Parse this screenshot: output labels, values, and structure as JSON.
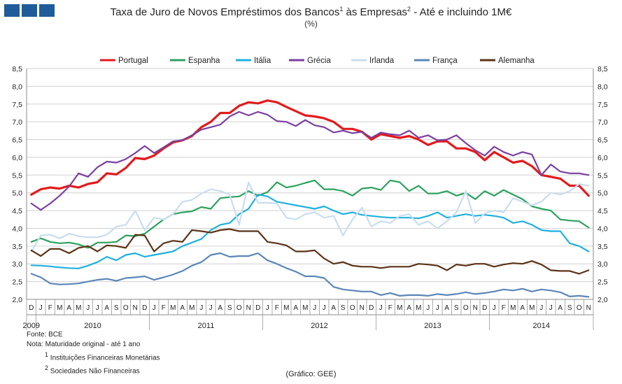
{
  "header": {
    "title_parts": [
      "Taxa de Juro de Novos Empréstimos dos Bancos",
      "1",
      " às Empresas",
      "2",
      " - Até e incluindo 1M€"
    ],
    "subtitle": "(%)"
  },
  "logo_color": "#1f5c99",
  "notes": {
    "source": "Fonte: BCE",
    "note": "Nota: Maturidade original - até 1 ano",
    "note1_mark": "1",
    "note1_text": " Instituições Financeiras Monetárias",
    "note2_mark": "2",
    "note2_text": " Sociedades Não Financeiras"
  },
  "credit": "(Gráfico: GEE)",
  "chart_data": {
    "type": "line",
    "ylim": [
      2.0,
      8.5
    ],
    "yticks": [
      "2,0",
      "2,5",
      "3,0",
      "3,5",
      "4,0",
      "4,5",
      "5,0",
      "5,5",
      "6,0",
      "6,5",
      "7,0",
      "7,5",
      "8,0",
      "8,5"
    ],
    "month_letters": [
      "D",
      "J",
      "F",
      "M",
      "A",
      "M",
      "J",
      "J",
      "A",
      "S",
      "O",
      "N",
      "D",
      "J",
      "F",
      "M",
      "A",
      "M",
      "J",
      "J",
      "A",
      "S",
      "O",
      "N",
      "D",
      "J",
      "F",
      "M",
      "A",
      "M",
      "J",
      "J",
      "A",
      "S",
      "O",
      "N",
      "D",
      "J",
      "F",
      "M",
      "A",
      "M",
      "J",
      "J",
      "A",
      "S",
      "O",
      "N",
      "D",
      "J",
      "F",
      "M",
      "A",
      "M",
      "J",
      "J",
      "A",
      "S",
      "O",
      "N"
    ],
    "years": [
      {
        "label": "2009",
        "start": 0,
        "end": 1
      },
      {
        "label": "2010",
        "start": 1,
        "end": 13
      },
      {
        "label": "2011",
        "start": 13,
        "end": 25
      },
      {
        "label": "2012",
        "start": 25,
        "end": 37
      },
      {
        "label": "2013",
        "start": 37,
        "end": 49
      },
      {
        "label": "2014",
        "start": 49,
        "end": 60
      }
    ],
    "grid": true,
    "legend_position": "top",
    "series": [
      {
        "name": "Portugal",
        "color": "#e31a1c",
        "width": 3.2,
        "values": [
          4.95,
          5.1,
          5.15,
          5.12,
          5.2,
          5.15,
          5.25,
          5.3,
          5.55,
          5.52,
          5.7,
          5.98,
          5.95,
          6.05,
          6.25,
          6.42,
          6.48,
          6.6,
          6.85,
          7.0,
          7.25,
          7.25,
          7.45,
          7.55,
          7.52,
          7.6,
          7.55,
          7.42,
          7.3,
          7.18,
          7.15,
          7.1,
          7.0,
          6.8,
          6.8,
          6.72,
          6.5,
          6.65,
          6.6,
          6.55,
          6.6,
          6.5,
          6.35,
          6.45,
          6.45,
          6.25,
          6.25,
          6.15,
          5.92,
          6.15,
          6.0,
          5.85,
          5.9,
          5.75,
          5.5,
          5.45,
          5.4,
          5.2,
          5.2,
          4.92
        ]
      },
      {
        "name": "Espanha",
        "color": "#2ca25f",
        "width": 2.2,
        "values": [
          3.62,
          3.72,
          3.62,
          3.58,
          3.6,
          3.55,
          3.45,
          3.6,
          3.6,
          3.62,
          3.8,
          3.78,
          3.85,
          4.05,
          4.25,
          4.4,
          4.45,
          4.48,
          4.6,
          4.55,
          4.85,
          4.88,
          4.9,
          5.05,
          4.92,
          5.02,
          5.3,
          5.15,
          5.2,
          5.28,
          5.35,
          5.1,
          5.1,
          5.05,
          4.92,
          5.12,
          5.15,
          5.08,
          5.35,
          5.3,
          5.05,
          5.2,
          4.98,
          4.98,
          5.05,
          4.92,
          5.0,
          4.82,
          5.05,
          4.92,
          5.08,
          4.95,
          4.82,
          4.62,
          4.55,
          4.5,
          4.25,
          4.22,
          4.2,
          4.02
        ]
      },
      {
        "name": "Itália",
        "color": "#1fb0e0",
        "width": 2.2,
        "values": [
          2.96,
          2.95,
          2.93,
          2.9,
          2.88,
          2.87,
          2.95,
          3.05,
          3.2,
          3.1,
          3.25,
          3.3,
          3.2,
          3.25,
          3.3,
          3.35,
          3.5,
          3.6,
          3.7,
          3.95,
          4.1,
          4.15,
          4.4,
          4.55,
          4.95,
          4.9,
          4.75,
          4.7,
          4.65,
          4.6,
          4.55,
          4.62,
          4.5,
          4.4,
          4.45,
          4.38,
          4.35,
          4.32,
          4.3,
          4.3,
          4.3,
          4.28,
          4.35,
          4.45,
          4.3,
          4.35,
          4.4,
          4.35,
          4.38,
          4.35,
          4.3,
          4.15,
          4.2,
          4.1,
          3.95,
          3.92,
          3.92,
          3.58,
          3.5,
          3.35
        ]
      },
      {
        "name": "Grécia",
        "color": "#7b3fa0",
        "width": 2.2,
        "values": [
          4.7,
          4.52,
          4.7,
          4.92,
          5.18,
          5.55,
          5.45,
          5.72,
          5.88,
          5.85,
          5.95,
          6.12,
          6.32,
          6.12,
          6.28,
          6.45,
          6.48,
          6.62,
          6.78,
          6.85,
          6.92,
          7.15,
          7.28,
          7.18,
          7.28,
          7.2,
          7.02,
          7.0,
          6.88,
          7.05,
          6.9,
          6.85,
          6.7,
          6.75,
          6.68,
          6.72,
          6.55,
          6.7,
          6.65,
          6.62,
          6.75,
          6.55,
          6.62,
          6.48,
          6.5,
          6.62,
          6.4,
          6.2,
          6.05,
          6.3,
          6.15,
          6.05,
          6.15,
          6.08,
          5.5,
          5.8,
          5.6,
          5.55,
          5.55,
          5.5
        ]
      },
      {
        "name": "Irlanda",
        "color": "#c9ddf0",
        "width": 2.2,
        "values": [
          3.35,
          3.8,
          3.82,
          3.72,
          3.85,
          3.78,
          3.75,
          3.75,
          3.82,
          4.05,
          4.1,
          4.5,
          3.95,
          4.3,
          4.25,
          4.4,
          4.75,
          4.8,
          4.98,
          5.1,
          5.05,
          4.95,
          4.1,
          5.3,
          4.72,
          4.72,
          4.7,
          4.3,
          4.25,
          4.4,
          4.45,
          4.3,
          4.35,
          3.8,
          4.25,
          4.58,
          4.05,
          4.2,
          4.15,
          4.35,
          4.4,
          4.1,
          4.2,
          4.0,
          4.2,
          4.45,
          5.05,
          4.15,
          4.42,
          4.5,
          4.45,
          4.85,
          4.75,
          4.65,
          4.75,
          5.0,
          4.95,
          5.05,
          5.25,
          5.2
        ]
      },
      {
        "name": "França",
        "color": "#5b86b8",
        "width": 2.2,
        "values": [
          2.72,
          2.62,
          2.45,
          2.42,
          2.43,
          2.45,
          2.5,
          2.55,
          2.58,
          2.52,
          2.6,
          2.62,
          2.65,
          2.55,
          2.62,
          2.7,
          2.8,
          2.95,
          3.05,
          3.25,
          3.3,
          3.2,
          3.22,
          3.22,
          3.3,
          3.1,
          3.0,
          2.88,
          2.78,
          2.65,
          2.65,
          2.6,
          2.35,
          2.28,
          2.25,
          2.22,
          2.22,
          2.12,
          2.18,
          2.1,
          2.12,
          2.12,
          2.1,
          2.15,
          2.12,
          2.15,
          2.2,
          2.15,
          2.18,
          2.22,
          2.28,
          2.25,
          2.3,
          2.22,
          2.28,
          2.25,
          2.2,
          2.08,
          2.1,
          2.07
        ]
      },
      {
        "name": "Alemanha",
        "color": "#5b3317",
        "width": 2.2,
        "values": [
          3.38,
          3.22,
          3.42,
          3.42,
          3.3,
          3.45,
          3.5,
          3.35,
          3.52,
          3.5,
          3.45,
          3.82,
          3.8,
          3.35,
          3.58,
          3.65,
          3.62,
          3.95,
          3.92,
          3.88,
          3.95,
          3.98,
          3.92,
          3.92,
          3.92,
          3.62,
          3.58,
          3.52,
          3.35,
          3.35,
          3.38,
          3.15,
          3.0,
          3.05,
          2.95,
          2.92,
          2.92,
          2.88,
          2.92,
          2.92,
          2.92,
          3.0,
          2.98,
          2.95,
          2.82,
          2.98,
          2.95,
          3.0,
          3.0,
          2.92,
          2.98,
          3.02,
          3.0,
          3.08,
          2.98,
          2.82,
          2.8,
          2.8,
          2.72,
          2.82
        ]
      }
    ]
  }
}
